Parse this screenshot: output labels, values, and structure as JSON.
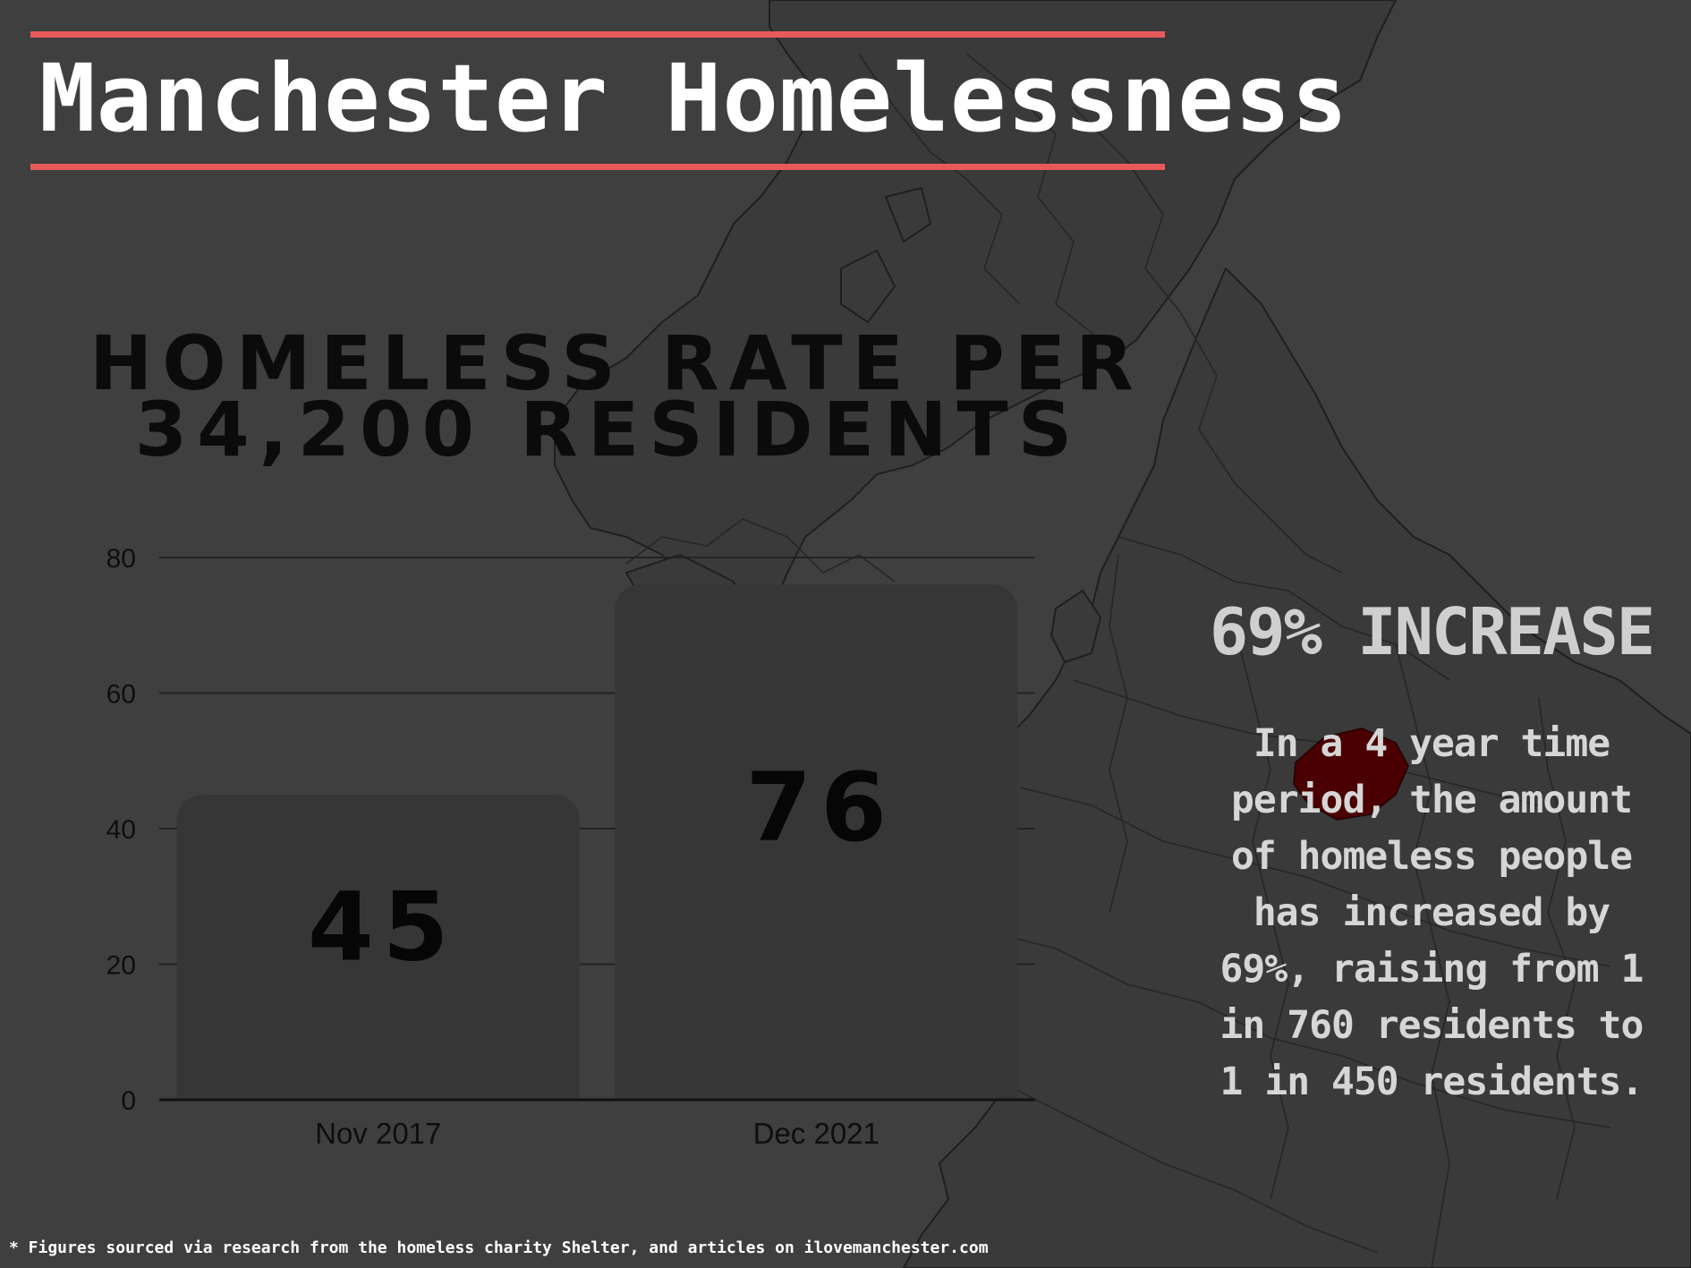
{
  "title": "Manchester Homelessness",
  "colors": {
    "background": "#3f3f3f",
    "accent_rule": "#e85a5a",
    "title_text": "#ffffff",
    "bar": "#363636",
    "highlight_region": "#4a0000"
  },
  "chart_data": {
    "type": "bar",
    "title_lines": [
      "HOMELESS RATE PER",
      "34,200 RESIDENTS"
    ],
    "categories": [
      "Nov 2017",
      "Dec 2021"
    ],
    "values": [
      45,
      76
    ],
    "value_labels": [
      "45",
      "76"
    ],
    "xlabel": "",
    "ylabel": "",
    "ylim": [
      0,
      80
    ],
    "yticks": [
      0,
      20,
      40,
      60,
      80
    ],
    "ytick_labels": [
      "0",
      "20",
      "40",
      "60",
      "80"
    ],
    "grid": true
  },
  "sidebar": {
    "headline": "69% INCREASE",
    "description": "In a 4 year time period, the amount of homeless people has increased by 69%, raising from 1 in 760 residents to 1 in 450 residents."
  },
  "footnote": "* Figures sourced via research from the homeless charity Shelter, and articles on ilovemanchester.com",
  "icons": {
    "background_map": "uk-map-icon",
    "highlight": "manchester-region-marker"
  }
}
